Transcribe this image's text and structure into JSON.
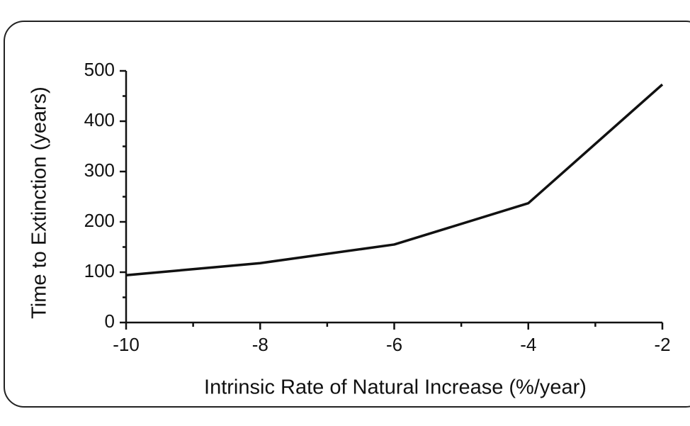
{
  "chart_data": {
    "type": "line",
    "x": [
      -10,
      -8,
      -6,
      -4,
      -2
    ],
    "values": [
      94,
      118,
      155,
      237,
      473
    ],
    "color": "#111111",
    "xlabel": "Intrinsic Rate of Natural Increase (%/year)",
    "ylabel": "Time to Extinction (years)",
    "xlim": [
      -10,
      -2
    ],
    "xticks": [
      -10,
      -8,
      -6,
      -4,
      -2
    ],
    "xminorticks": [
      -9,
      -7,
      -5,
      -3
    ],
    "ylim": [
      0,
      500
    ],
    "yticks": [
      0,
      100,
      200,
      300,
      400,
      500
    ],
    "yminorticks": [
      50,
      150,
      250,
      350,
      450
    ],
    "grid": false
  }
}
